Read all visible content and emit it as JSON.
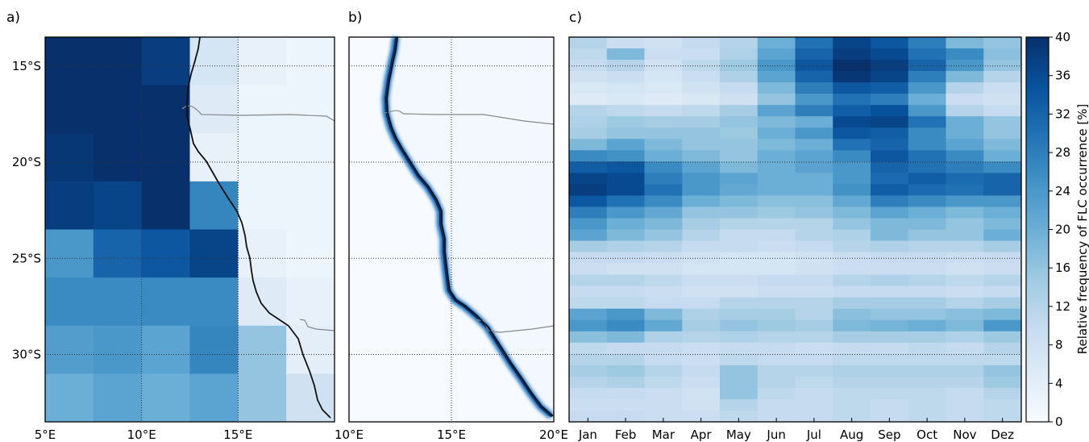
{
  "panels": {
    "a": {
      "label": "a)"
    },
    "b": {
      "label": "b)"
    },
    "c": {
      "label": "c)"
    }
  },
  "colors": {
    "scale": [
      "#f7fbff",
      "#deebf7",
      "#c6dbef",
      "#9ecae1",
      "#6baed6",
      "#4292c6",
      "#2171b5",
      "#08519c",
      "#08306b"
    ],
    "coast": "#111111",
    "border": "#888888",
    "grid": "#333333"
  },
  "chart_data": [
    {
      "type": "heatmap",
      "panel": "a",
      "title": "",
      "x_ticks": [
        "5°E",
        "10°E",
        "15°E"
      ],
      "x_tick_values": [
        5,
        10,
        15
      ],
      "y_ticks": [
        "15°S",
        "20°S",
        "25°S",
        "30°S"
      ],
      "y_tick_values": [
        -15,
        -20,
        -25,
        -30
      ],
      "xlim": [
        5,
        20
      ],
      "ylim": [
        -33.5,
        -13.5
      ],
      "grid": true,
      "lon_centers": [
        6.25,
        8.75,
        11.25,
        13.75,
        16.25,
        18.75
      ],
      "lat_centers": [
        -14.75,
        -17.25,
        -19.75,
        -22.25,
        -24.75,
        -27.25,
        -29.75,
        -32.25
      ],
      "values_percent": [
        [
          40,
          40,
          38,
          7,
          3,
          2
        ],
        [
          40,
          40,
          40,
          5,
          2,
          2
        ],
        [
          39,
          40,
          40,
          3,
          2,
          2
        ],
        [
          38,
          37,
          40,
          27,
          2,
          2
        ],
        [
          24,
          32,
          34,
          37,
          3,
          2
        ],
        [
          26,
          26,
          26,
          26,
          5,
          3
        ],
        [
          23,
          24,
          22,
          27,
          16,
          4
        ],
        [
          20,
          22,
          20,
          22,
          16,
          8
        ]
      ]
    },
    {
      "type": "heatmap",
      "panel": "b",
      "title": "",
      "x_ticks": [
        "10°E",
        "15°E",
        "20°E"
      ],
      "x_tick_values": [
        10,
        15,
        20
      ],
      "xlim": [
        10,
        20
      ],
      "ylim": [
        -33.5,
        -13.5
      ],
      "grid": true
    },
    {
      "type": "heatmap",
      "panel": "c",
      "title": "",
      "x": [
        "Jan",
        "Feb",
        "Mar",
        "Apr",
        "May",
        "Jun",
        "Jul",
        "Aug",
        "Sep",
        "Oct",
        "Nov",
        "Dez"
      ],
      "colorbar": {
        "label": "Relative frequency of FLC occurrence [%]",
        "ticks": [
          0,
          4,
          8,
          12,
          16,
          20,
          24,
          28,
          32,
          36,
          40
        ],
        "range": [
          0,
          40
        ]
      },
      "dotted_lines": 4,
      "grid": false,
      "values_percent": [
        [
          12,
          9,
          8,
          10,
          12,
          20,
          30,
          37,
          34,
          28,
          18,
          16
        ],
        [
          11,
          18,
          9,
          9,
          13,
          22,
          32,
          38,
          36,
          30,
          26,
          17
        ],
        [
          10,
          12,
          8,
          11,
          15,
          24,
          34,
          40,
          38,
          32,
          24,
          16
        ],
        [
          8,
          9,
          7,
          9,
          13,
          22,
          32,
          39,
          37,
          28,
          18,
          12
        ],
        [
          6,
          7,
          6,
          8,
          10,
          18,
          28,
          34,
          33,
          24,
          12,
          9
        ],
        [
          5,
          6,
          5,
          6,
          8,
          16,
          24,
          30,
          28,
          20,
          9,
          8
        ],
        [
          12,
          11,
          10,
          11,
          14,
          22,
          28,
          33,
          35,
          24,
          12,
          10
        ],
        [
          13,
          15,
          14,
          14,
          16,
          18,
          20,
          36,
          37,
          30,
          20,
          16
        ],
        [
          14,
          16,
          16,
          16,
          15,
          20,
          24,
          34,
          33,
          26,
          20,
          16
        ],
        [
          18,
          22,
          18,
          16,
          16,
          18,
          20,
          30,
          32,
          26,
          22,
          18
        ],
        [
          26,
          25,
          20,
          18,
          16,
          20,
          22,
          26,
          34,
          30,
          26,
          20
        ],
        [
          33,
          34,
          26,
          22,
          18,
          20,
          22,
          24,
          32,
          30,
          28,
          26
        ],
        [
          37,
          36,
          28,
          24,
          22,
          20,
          20,
          24,
          31,
          33,
          31,
          32
        ],
        [
          38,
          36,
          30,
          24,
          21,
          20,
          20,
          25,
          33,
          31,
          30,
          32
        ],
        [
          34,
          30,
          26,
          20,
          18,
          17,
          17,
          21,
          28,
          26,
          24,
          24
        ],
        [
          28,
          24,
          21,
          16,
          16,
          15,
          16,
          18,
          22,
          20,
          18,
          20
        ],
        [
          24,
          20,
          18,
          14,
          12,
          12,
          12,
          16,
          18,
          18,
          16,
          18
        ],
        [
          22,
          18,
          16,
          12,
          10,
          10,
          12,
          13,
          18,
          16,
          16,
          20
        ],
        [
          14,
          13,
          12,
          10,
          10,
          9,
          10,
          12,
          13,
          12,
          12,
          14
        ],
        [
          10,
          10,
          9,
          8,
          7,
          7,
          8,
          9,
          10,
          10,
          9,
          10
        ],
        [
          9,
          8,
          8,
          7,
          7,
          7,
          8,
          9,
          9,
          9,
          8,
          9
        ],
        [
          12,
          12,
          11,
          9,
          9,
          10,
          10,
          12,
          13,
          12,
          11,
          12
        ],
        [
          10,
          10,
          9,
          8,
          8,
          9,
          9,
          10,
          10,
          10,
          9,
          10
        ],
        [
          11,
          11,
          10,
          10,
          12,
          12,
          12,
          14,
          14,
          14,
          12,
          14
        ],
        [
          22,
          24,
          18,
          13,
          14,
          14,
          12,
          17,
          16,
          16,
          17,
          18
        ],
        [
          24,
          26,
          21,
          14,
          16,
          15,
          14,
          18,
          19,
          20,
          18,
          24
        ],
        [
          17,
          18,
          13,
          12,
          13,
          12,
          12,
          14,
          14,
          14,
          13,
          15
        ],
        [
          11,
          10,
          10,
          9,
          10,
          10,
          9,
          10,
          10,
          11,
          10,
          12
        ],
        [
          12,
          12,
          10,
          9,
          11,
          10,
          10,
          11,
          11,
          11,
          11,
          11
        ],
        [
          14,
          15,
          12,
          10,
          16,
          12,
          12,
          13,
          13,
          13,
          13,
          16
        ],
        [
          12,
          13,
          11,
          9,
          16,
          12,
          11,
          12,
          12,
          12,
          12,
          15
        ],
        [
          10,
          10,
          9,
          8,
          16,
          11,
          10,
          11,
          11,
          11,
          10,
          12
        ],
        [
          9,
          9,
          9,
          8,
          12,
          10,
          10,
          11,
          10,
          11,
          10,
          11
        ],
        [
          10,
          10,
          9,
          9,
          11,
          10,
          10,
          11,
          10,
          11,
          10,
          11
        ]
      ]
    }
  ]
}
